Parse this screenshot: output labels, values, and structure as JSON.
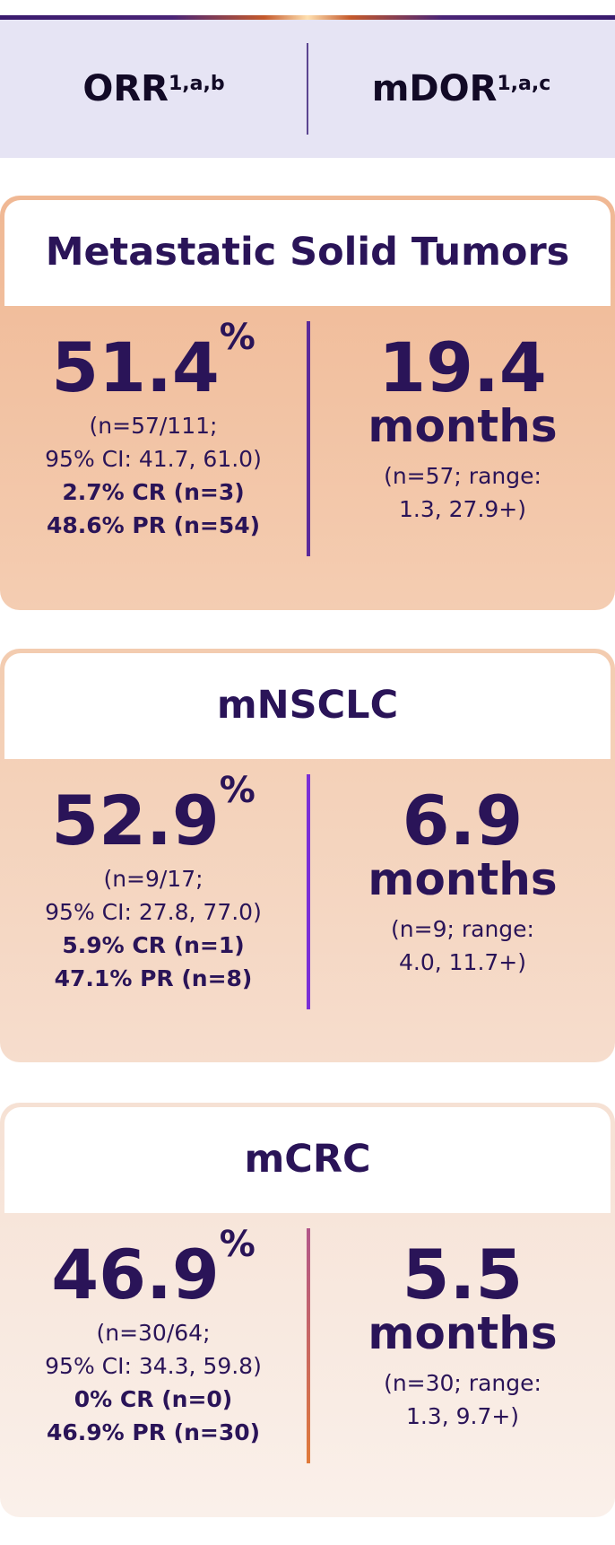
{
  "header": {
    "orr_label": "ORR",
    "orr_sup": "1,a,b",
    "mdor_label": "mDOR",
    "mdor_sup": "1,a,c"
  },
  "cards": [
    {
      "title": "Metastatic Solid Tumors",
      "orr_value": "51.4",
      "percent_sign": "%",
      "orr_detail_1": "(n=57/111;",
      "orr_detail_2": "95% CI: 41.7, 61.0)",
      "cr": "2.7% CR (n=3)",
      "pr": "48.6% PR (n=54)",
      "mdor_value": "19.4",
      "mdor_unit": "months",
      "mdor_detail_1": "(n=57; range:",
      "mdor_detail_2": "1.3, 27.9+)"
    },
    {
      "title": "mNSCLC",
      "orr_value": "52.9",
      "percent_sign": "%",
      "orr_detail_1": "(n=9/17;",
      "orr_detail_2": "95% CI: 27.8, 77.0)",
      "cr": "5.9% CR (n=1)",
      "pr": "47.1% PR (n=8)",
      "mdor_value": "6.9",
      "mdor_unit": "months",
      "mdor_detail_1": "(n=9; range:",
      "mdor_detail_2": "4.0, 11.7+)"
    },
    {
      "title": "mCRC",
      "orr_value": "46.9",
      "percent_sign": "%",
      "orr_detail_1": "(n=30/64;",
      "orr_detail_2": "95% CI: 34.3, 59.8)",
      "cr": "0% CR (n=0)",
      "pr": "46.9% PR (n=30)",
      "mdor_value": "5.5",
      "mdor_unit": "months",
      "mdor_detail_1": "(n=30; range:",
      "mdor_detail_2": "1.3, 9.7+)"
    }
  ],
  "colors": {
    "text": "#2a1458",
    "card1_divider": "#5b2a9a",
    "card2_divider": "#7b2fd6",
    "card3_divider": "#c0606a"
  }
}
